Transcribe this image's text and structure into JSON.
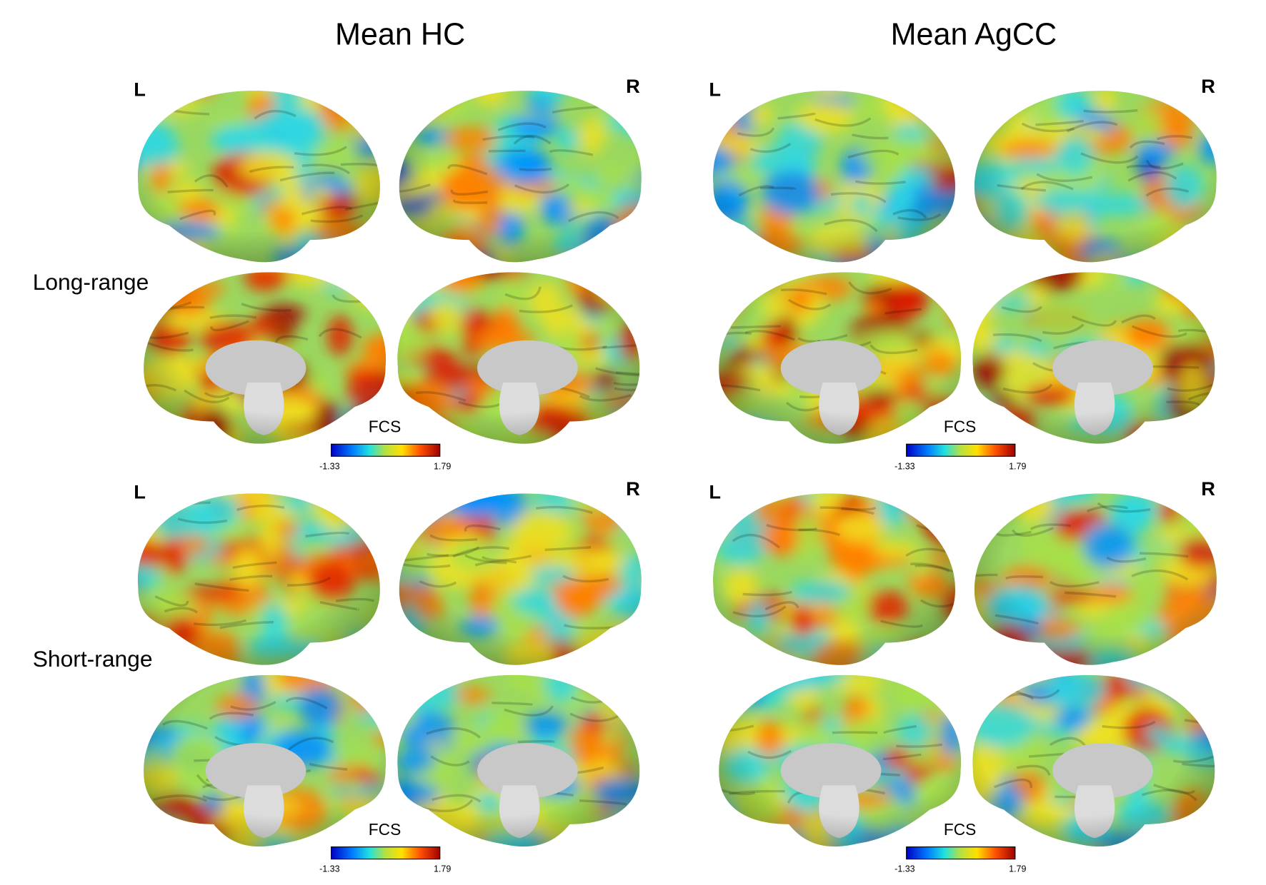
{
  "columns": [
    {
      "title": "Mean HC"
    },
    {
      "title": "Mean AgCC"
    }
  ],
  "rows": [
    {
      "label": "Long-range"
    },
    {
      "label": "Short-range"
    }
  ],
  "panels": [
    {
      "left_label": "L",
      "right_label": "R",
      "colorbar": {
        "label": "FCS",
        "min": -1.33,
        "max": 1.79
      }
    },
    {
      "left_label": "L",
      "right_label": "R",
      "colorbar": {
        "label": "FCS",
        "min": -1.33,
        "max": 1.79
      }
    },
    {
      "left_label": "L",
      "right_label": "R",
      "colorbar": {
        "label": "FCS",
        "min": -1.33,
        "max": 1.79
      }
    },
    {
      "left_label": "L",
      "right_label": "R",
      "colorbar": {
        "label": "FCS",
        "min": -1.33,
        "max": 1.79
      }
    }
  ]
}
